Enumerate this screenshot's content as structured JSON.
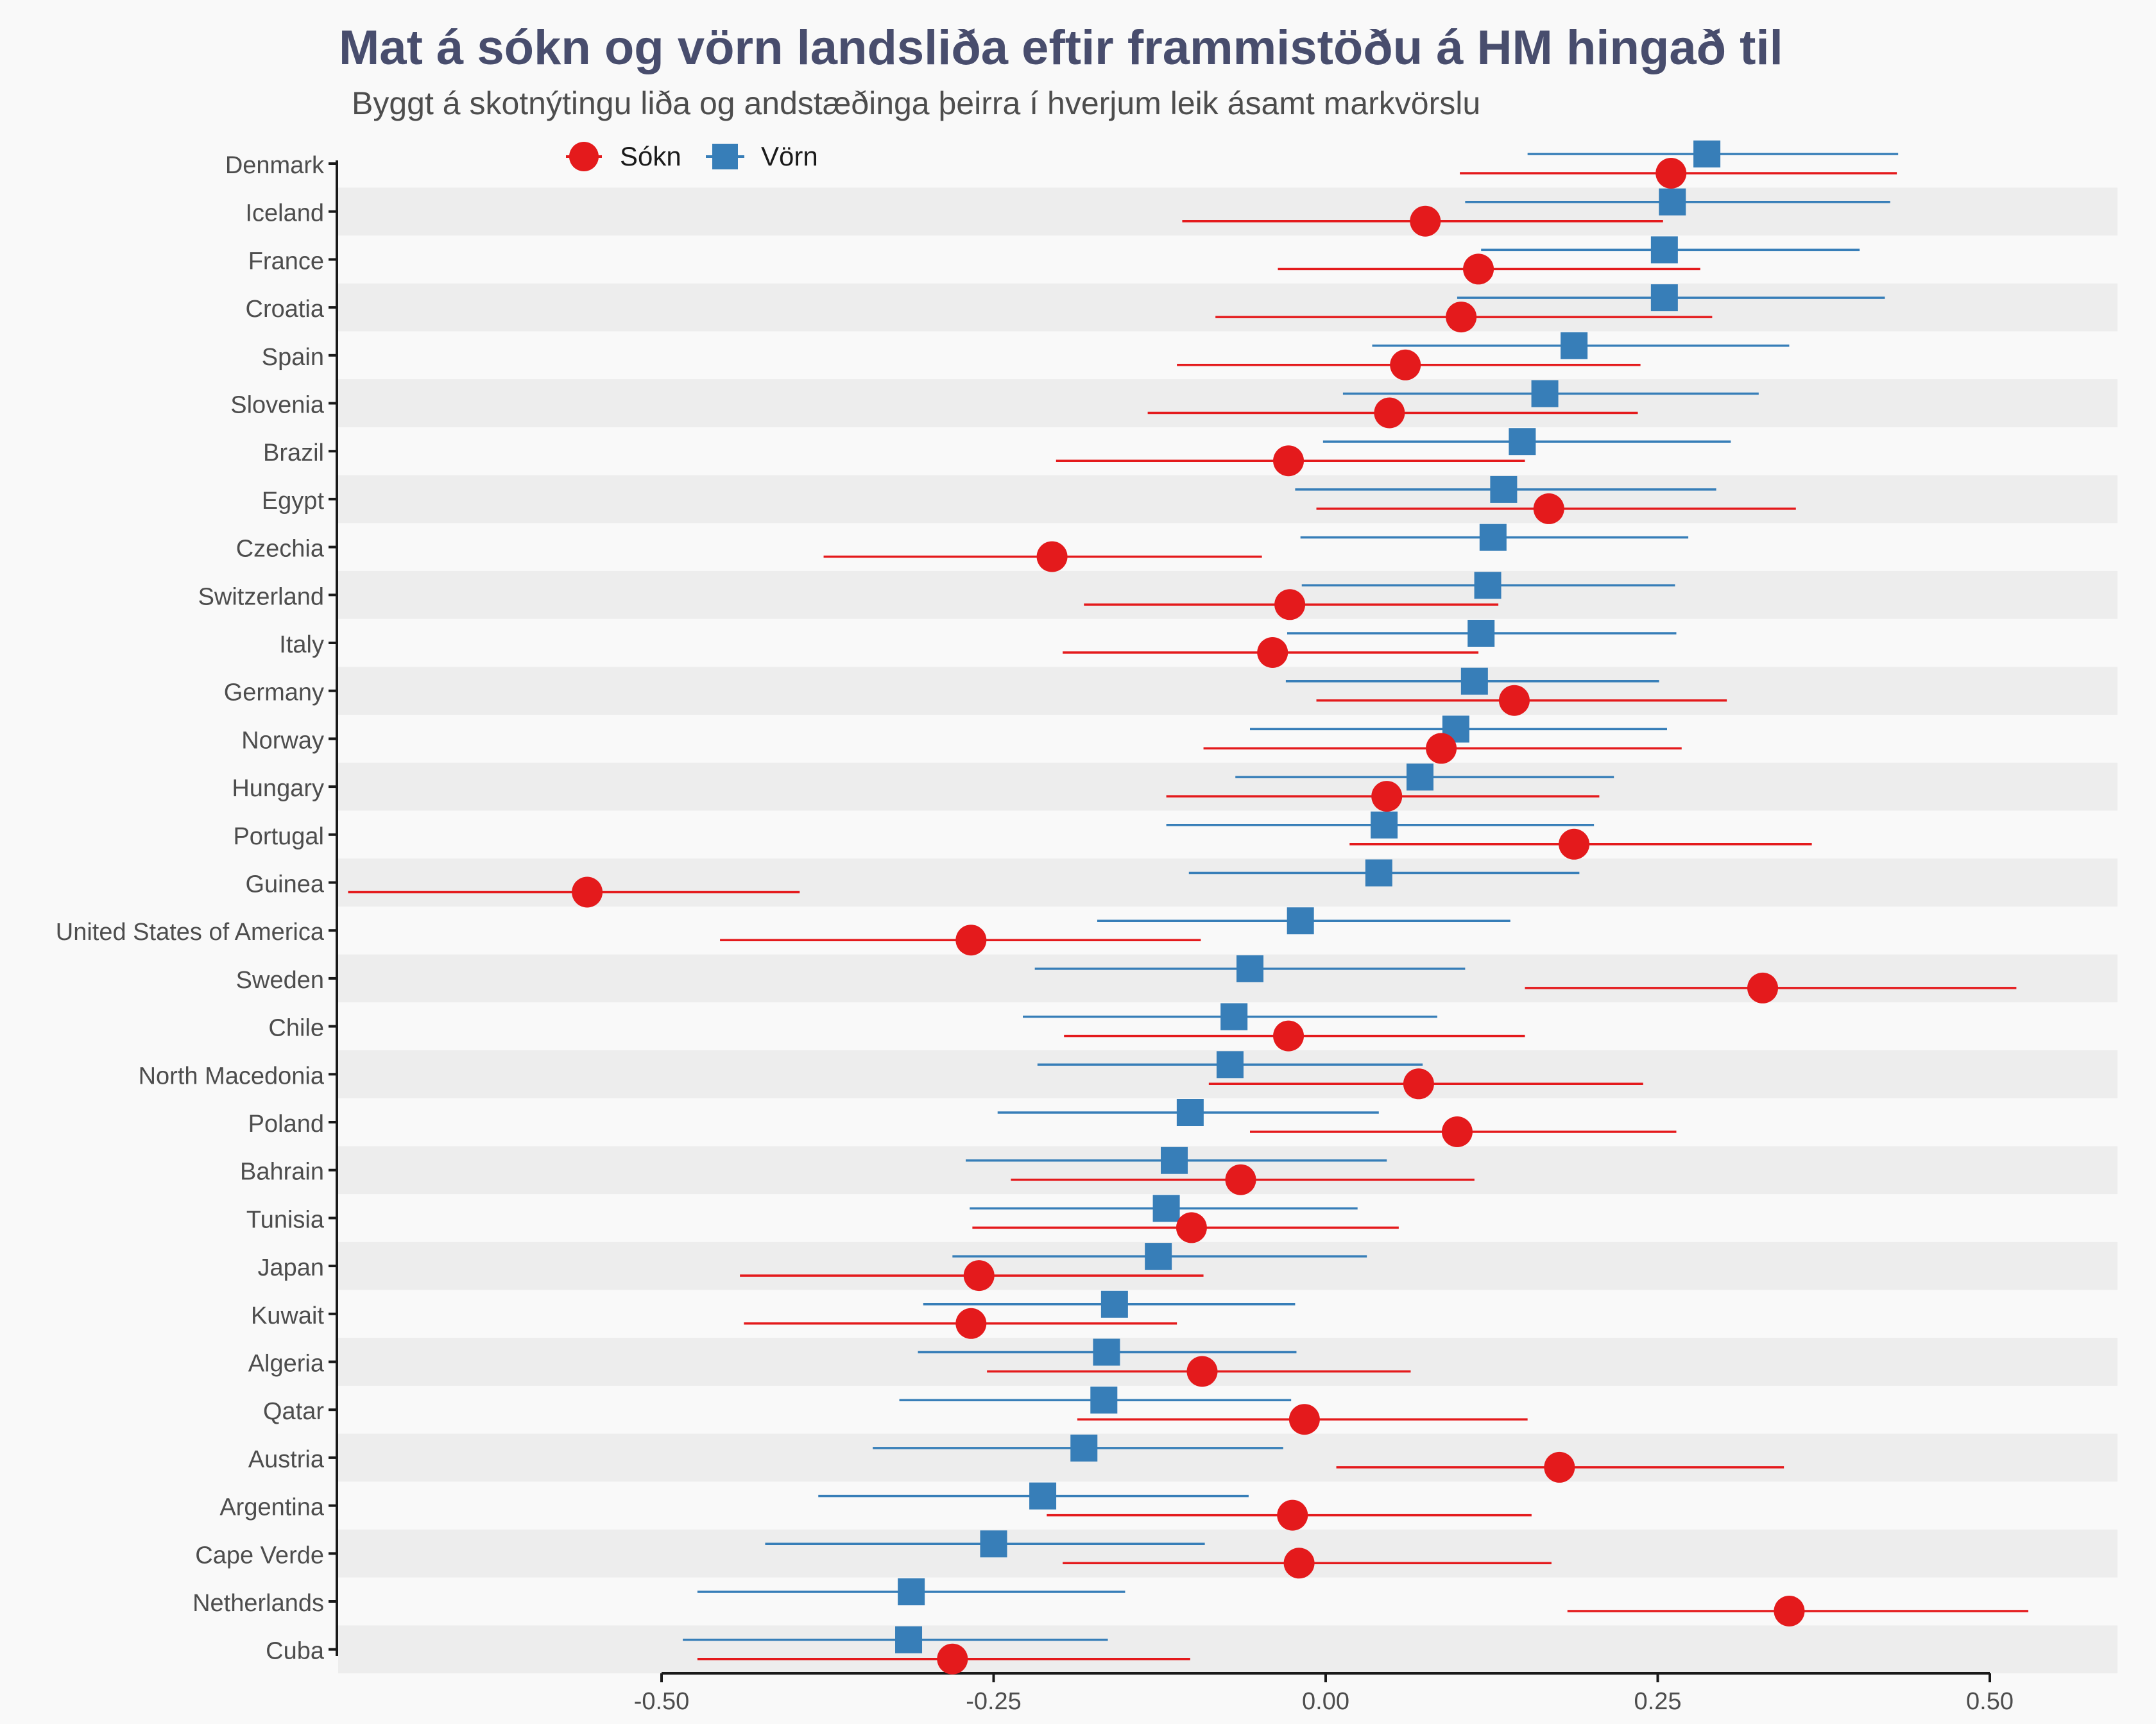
{
  "chart_data": {
    "type": "scatter",
    "title": "Mat á sókn og vörn landsliða eftir frammistöðu á HM hingað til",
    "subtitle": "Byggt á skotnýtingu liða og andstæðinga þeirra í hverjum leik ásamt markvörslu",
    "xlabel": "",
    "ylabel": "",
    "xlim": [
      -0.5,
      0.5
    ],
    "x_ticks": [
      -0.5,
      -0.25,
      0,
      0.25,
      0.5
    ],
    "x_tick_labels": [
      "-0.50",
      "-0.25",
      "0.00",
      "0.25",
      "0.50"
    ],
    "grid": false,
    "legend_position": "top-left",
    "colors": {
      "sokn": "#e41a1c",
      "vorn": "#377eb8",
      "band": "#ededed",
      "background": "#f9f9f9"
    },
    "categories": [
      "Denmark",
      "Iceland",
      "France",
      "Croatia",
      "Spain",
      "Slovenia",
      "Brazil",
      "Egypt",
      "Czechia",
      "Switzerland",
      "Italy",
      "Germany",
      "Norway",
      "Hungary",
      "Portugal",
      "Guinea",
      "United States of America",
      "Sweden",
      "Chile",
      "North Macedonia",
      "Poland",
      "Bahrain",
      "Tunisia",
      "Japan",
      "Kuwait",
      "Algeria",
      "Qatar",
      "Austria",
      "Argentina",
      "Cape Verde",
      "Netherlands",
      "Cuba"
    ],
    "series": [
      {
        "name": "Sókn",
        "marker": "circle",
        "values": [
          0.26,
          0.075,
          0.115,
          0.102,
          0.06,
          0.048,
          -0.028,
          0.168,
          -0.206,
          -0.027,
          -0.04,
          0.142,
          0.087,
          0.046,
          0.187,
          -0.556,
          -0.267,
          0.329,
          -0.028,
          0.07,
          0.099,
          -0.064,
          -0.101,
          -0.261,
          -0.267,
          -0.093,
          -0.016,
          0.176,
          -0.025,
          -0.02,
          0.349,
          -0.281
        ],
        "lower": [
          0.101,
          -0.108,
          -0.036,
          -0.083,
          -0.112,
          -0.134,
          -0.203,
          -0.007,
          -0.378,
          -0.182,
          -0.198,
          -0.007,
          -0.092,
          -0.12,
          0.018,
          -0.736,
          -0.456,
          0.15,
          -0.197,
          -0.088,
          -0.057,
          -0.237,
          -0.266,
          -0.441,
          -0.438,
          -0.255,
          -0.187,
          0.008,
          -0.21,
          -0.198,
          0.182,
          -0.473
        ],
        "upper": [
          0.43,
          0.254,
          0.282,
          0.291,
          0.237,
          0.235,
          0.15,
          0.354,
          -0.048,
          0.13,
          0.115,
          0.302,
          0.268,
          0.206,
          0.366,
          -0.396,
          -0.094,
          0.52,
          0.15,
          0.239,
          0.264,
          0.112,
          0.055,
          -0.092,
          -0.112,
          0.064,
          0.152,
          0.345,
          0.155,
          0.17,
          0.529,
          -0.102
        ]
      },
      {
        "name": "Vörn",
        "marker": "square",
        "values": [
          0.287,
          0.261,
          0.255,
          0.255,
          0.187,
          0.165,
          0.148,
          0.134,
          0.126,
          0.122,
          0.117,
          0.112,
          0.098,
          0.071,
          0.044,
          0.04,
          -0.019,
          -0.057,
          -0.069,
          -0.072,
          -0.102,
          -0.114,
          -0.12,
          -0.126,
          -0.159,
          -0.165,
          -0.167,
          -0.182,
          -0.213,
          -0.25,
          -0.312,
          -0.314
        ],
        "lower": [
          0.152,
          0.105,
          0.117,
          0.099,
          0.035,
          0.013,
          -0.002,
          -0.023,
          -0.019,
          -0.018,
          -0.029,
          -0.03,
          -0.057,
          -0.068,
          -0.12,
          -0.103,
          -0.172,
          -0.219,
          -0.228,
          -0.217,
          -0.247,
          -0.271,
          -0.268,
          -0.281,
          -0.303,
          -0.307,
          -0.321,
          -0.341,
          -0.382,
          -0.422,
          -0.473,
          -0.484
        ],
        "upper": [
          0.431,
          0.425,
          0.402,
          0.421,
          0.349,
          0.326,
          0.305,
          0.294,
          0.273,
          0.263,
          0.264,
          0.251,
          0.257,
          0.217,
          0.202,
          0.191,
          0.139,
          0.105,
          0.084,
          0.073,
          0.04,
          0.046,
          0.024,
          0.031,
          -0.023,
          -0.022,
          -0.026,
          -0.032,
          -0.058,
          -0.091,
          -0.151,
          -0.164
        ]
      }
    ]
  }
}
